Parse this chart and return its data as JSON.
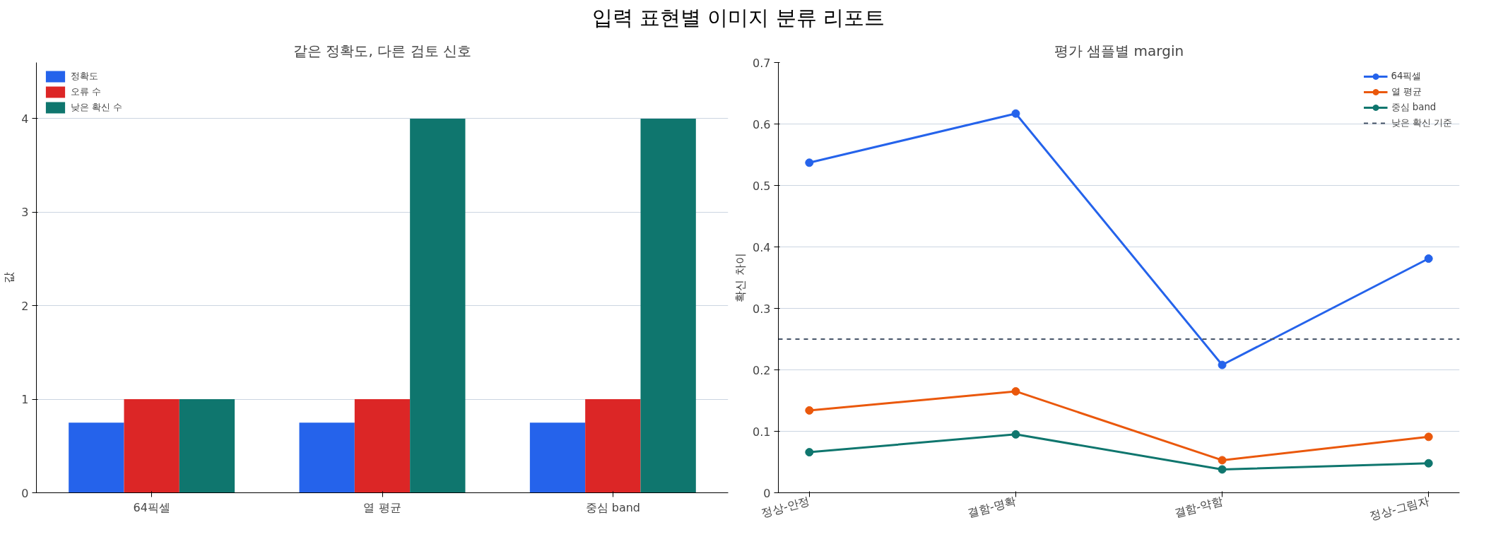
{
  "chart_data": [
    {
      "type": "bar",
      "title": "같은 정확도, 다른 검토 신호",
      "annotations": [
        "입력 표현별 이미지 분류 리포트"
      ],
      "ylabel": "값",
      "categories": [
        "64픽셀",
        "열 평균",
        "중심 band"
      ],
      "series": [
        {
          "name": "정확도",
          "color": "#2563eb",
          "values": [
            0.75,
            0.75,
            0.75
          ]
        },
        {
          "name": "오류 수",
          "color": "#dc2626",
          "values": [
            1,
            1,
            1
          ]
        },
        {
          "name": "낮은 확신 수",
          "color": "#0f766e",
          "values": [
            1,
            4,
            4
          ]
        }
      ],
      "ylim": [
        0,
        4.6
      ],
      "yticks": [
        0,
        1,
        2,
        3,
        4
      ],
      "grid": "y",
      "legend": "top left"
    },
    {
      "type": "line",
      "title": "평가 샘플별 margin",
      "ylabel": "확신 차이",
      "categories": [
        "정상-안정",
        "결함-명확",
        "결함-약함",
        "정상-그림자"
      ],
      "series": [
        {
          "name": "64픽셀",
          "color": "#2563eb",
          "values": [
            0.537,
            0.617,
            0.208,
            0.381
          ]
        },
        {
          "name": "열 평균",
          "color": "#ea580c",
          "values": [
            0.134,
            0.165,
            0.053,
            0.091
          ]
        },
        {
          "name": "중심 band",
          "color": "#0f766e",
          "values": [
            0.066,
            0.095,
            0.038,
            0.048
          ]
        }
      ],
      "ref_lines": [
        {
          "axis": "y",
          "value": 0.25,
          "label": "낮은 확신 기준",
          "color": "#475569",
          "line_style": "dashed"
        }
      ],
      "ylim": [
        0,
        0.7
      ],
      "yticks": [
        0,
        0.1,
        0.2,
        0.3,
        0.4,
        0.5,
        0.6,
        0.7
      ],
      "grid": "y",
      "legend": "top right",
      "marker": "circle",
      "line_style": "solid"
    }
  ]
}
